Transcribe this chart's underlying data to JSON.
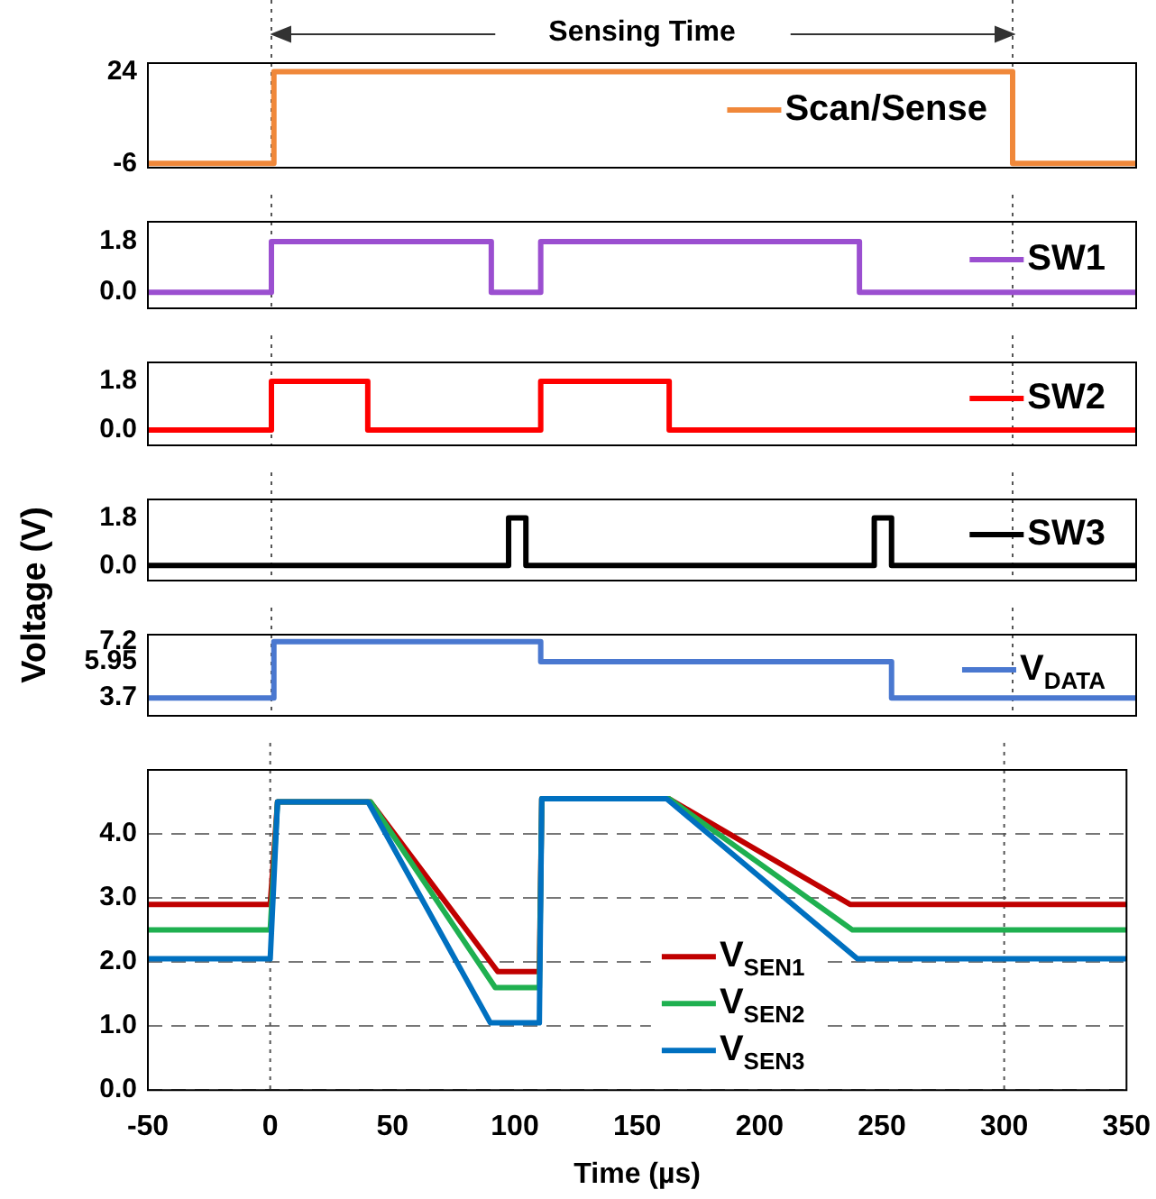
{
  "chart_data": [
    {
      "type": "line",
      "annotations": [
        "Sensing Time"
      ],
      "xlim": [
        -50,
        350
      ],
      "ylim": [
        -7.4,
        26.8
      ],
      "yticks": [
        -6,
        24
      ],
      "tick_labels": "y",
      "legend": "right",
      "ref_lines": [
        {
          "axis": "x",
          "value": 0,
          "color": "#555555",
          "line_style": "dotted"
        },
        {
          "axis": "x",
          "value": 300,
          "color": "#555555",
          "line_style": "dotted"
        }
      ],
      "series": [
        {
          "name": "Scan/Sense",
          "color": "#f0883a",
          "x": [
            -50,
            1,
            1,
            300,
            300,
            350
          ],
          "values": [
            -6,
            -6,
            24,
            24,
            -6,
            -6
          ]
        }
      ]
    },
    {
      "type": "line",
      "xlim": [
        -50,
        350
      ],
      "ylim": [
        -0.57,
        2.5
      ],
      "yticks": [
        {
          "value": 0,
          "label": "0.0"
        },
        1.8
      ],
      "tick_labels": "y",
      "legend": "right",
      "ref_lines": [
        {
          "axis": "x",
          "value": 0,
          "color": "#555555",
          "line_style": "dotted"
        },
        {
          "axis": "x",
          "value": 300,
          "color": "#555555",
          "line_style": "dotted"
        }
      ],
      "series": [
        {
          "name": "SW1",
          "color": "#9b4fd0",
          "x": [
            -50,
            0,
            0,
            89,
            89,
            109,
            109,
            238,
            238,
            350
          ],
          "values": [
            0,
            0,
            1.8,
            1.8,
            0,
            0,
            1.8,
            1.8,
            0,
            0
          ]
        }
      ]
    },
    {
      "type": "line",
      "xlim": [
        -50,
        350
      ],
      "ylim": [
        -0.57,
        2.5
      ],
      "yticks": [
        {
          "value": 0,
          "label": "0.0"
        },
        1.8
      ],
      "tick_labels": "y",
      "legend": "right",
      "ref_lines": [
        {
          "axis": "x",
          "value": 0,
          "color": "#555555",
          "line_style": "dotted"
        },
        {
          "axis": "x",
          "value": 300,
          "color": "#555555",
          "line_style": "dotted"
        }
      ],
      "series": [
        {
          "name": "SW2",
          "color": "#ff0000",
          "x": [
            -50,
            0,
            0,
            39,
            39,
            109,
            109,
            161,
            161,
            350
          ],
          "values": [
            0,
            0,
            1.8,
            1.8,
            0,
            0,
            1.8,
            1.8,
            0,
            0
          ]
        }
      ]
    },
    {
      "type": "line",
      "xlim": [
        -50,
        350
      ],
      "ylim": [
        -0.57,
        2.5
      ],
      "yticks": [
        {
          "value": 0,
          "label": "0.0"
        },
        1.8
      ],
      "tick_labels": "y",
      "legend": "right",
      "ref_lines": [
        {
          "axis": "x",
          "value": 0,
          "color": "#555555",
          "line_style": "dotted"
        },
        {
          "axis": "x",
          "value": 300,
          "color": "#555555",
          "line_style": "dotted"
        }
      ],
      "series": [
        {
          "name": "SW3",
          "color": "#000000",
          "x": [
            -50,
            96,
            96,
            103,
            103,
            244,
            244,
            251,
            251,
            350
          ],
          "values": [
            0,
            0,
            1.8,
            1.8,
            0,
            0,
            1.8,
            1.8,
            0,
            0
          ]
        }
      ]
    },
    {
      "type": "line",
      "xlim": [
        -50,
        350
      ],
      "ylim": [
        2.59,
        7.64
      ],
      "yticks": [
        3.7,
        5.95,
        7.2
      ],
      "tick_labels": "y",
      "legend": "right",
      "ref_lines": [
        {
          "axis": "x",
          "value": 0,
          "color": "#555555",
          "line_style": "dotted"
        },
        {
          "axis": "x",
          "value": 300,
          "color": "#555555",
          "line_style": "dotted"
        }
      ],
      "series": [
        {
          "name": "V$_{DATA}$",
          "color": "#4a78d0",
          "x": [
            -50,
            1,
            1,
            109,
            109,
            251,
            251,
            350
          ],
          "values": [
            3.7,
            3.7,
            7.2,
            7.2,
            5.95,
            5.95,
            3.7,
            3.7
          ]
        }
      ]
    },
    {
      "type": "line",
      "xlabel": "Time (µs)",
      "ylabel": "Voltage (V)",
      "xlim": [
        -50,
        350
      ],
      "xticks": [
        -50,
        0,
        50,
        100,
        150,
        200,
        250,
        300,
        350
      ],
      "ylim": [
        0,
        5
      ],
      "yticks": [
        {
          "value": 0,
          "label": "0.0"
        },
        {
          "value": 1,
          "label": "1.0"
        },
        {
          "value": 2,
          "label": "2.0"
        },
        {
          "value": 3,
          "label": "3.0"
        },
        {
          "value": 4,
          "label": "4.0"
        }
      ],
      "grid": "y",
      "legend": "bottom",
      "ref_lines": [
        {
          "axis": "x",
          "value": 0,
          "color": "#555555",
          "line_style": "dotted"
        },
        {
          "axis": "x",
          "value": 300,
          "color": "#555555",
          "line_style": "dotted"
        }
      ],
      "series": [
        {
          "name": "V$_{SEN1}$",
          "color": "#c00000",
          "x": [
            -50,
            0,
            3,
            41,
            93,
            110,
            111,
            163,
            237,
            350
          ],
          "values": [
            2.9,
            2.9,
            4.5,
            4.5,
            1.85,
            1.85,
            4.55,
            4.55,
            2.9,
            2.9
          ]
        },
        {
          "name": "V$_{SEN2}$",
          "color": "#1fb050",
          "x": [
            -50,
            0,
            3,
            41,
            92,
            110,
            111,
            163,
            238,
            350
          ],
          "values": [
            2.5,
            2.5,
            4.5,
            4.5,
            1.6,
            1.6,
            4.55,
            4.55,
            2.5,
            2.5
          ]
        },
        {
          "name": "V$_{SEN3}$",
          "color": "#0070c0",
          "x": [
            -50,
            0,
            3,
            40,
            90,
            110,
            111,
            162,
            240,
            350
          ],
          "values": [
            2.05,
            2.05,
            4.5,
            4.5,
            1.05,
            1.05,
            4.55,
            4.55,
            2.05,
            2.05
          ]
        }
      ]
    }
  ]
}
